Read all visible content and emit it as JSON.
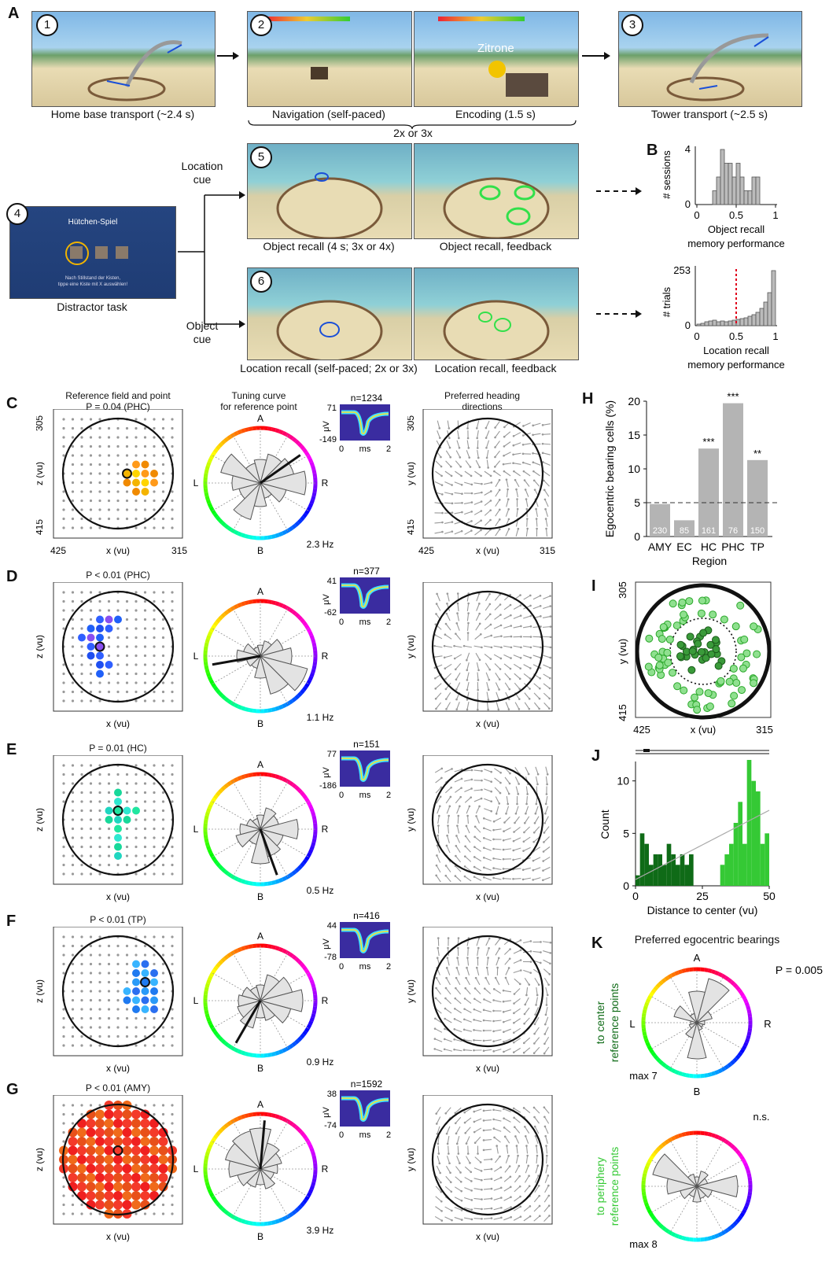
{
  "panel_letters": [
    "A",
    "B",
    "C",
    "D",
    "E",
    "F",
    "G",
    "H",
    "I",
    "J",
    "K"
  ],
  "panel_a": {
    "step_numbers": [
      "1",
      "2",
      "3",
      "4",
      "5",
      "6"
    ],
    "captions": {
      "home_base": "Home base transport (~2.4 s)",
      "navigation": "Navigation (self-paced)",
      "encoding": "Encoding (1.5 s)",
      "tower": "Tower transport (~2.5 s)",
      "repeat": "2x or 3x",
      "distractor": "Distractor task",
      "object_recall": "Object recall (4 s; 3x or 4x)",
      "object_feedback": "Object recall, feedback",
      "location_recall": "Location recall (self-paced; 2x or 3x)",
      "location_feedback": "Location recall, feedback",
      "location_cue_1": "Location",
      "location_cue_2": "cue",
      "object_cue_1": "Object",
      "object_cue_2": "cue"
    },
    "screen_text": {
      "encoding_word": "Zitrone",
      "distractor_title": "Hütchen-Spiel",
      "distractor_line1": "Nach Stillstand der Kisten,",
      "distractor_line2": "tippe eine Kiste mit X auswählen!"
    }
  },
  "panel_b": {
    "top": {
      "ylabel": "# sessions",
      "ymax": "4",
      "y0": "0",
      "xticks": [
        "0",
        "0.5",
        "1"
      ],
      "xlabel1": "Object recall",
      "xlabel2": "memory performance"
    },
    "bottom": {
      "ylabel": "# trials",
      "ymax": "253",
      "y0": "0",
      "xticks": [
        "0",
        "0.5",
        "1"
      ],
      "xlabel1": "Location recall",
      "xlabel2": "memory performance"
    }
  },
  "headers": {
    "ref_field_1": "Reference field and point",
    "ref_field_2": "P = 0.04 (PHC)",
    "tuning_1": "Tuning curve",
    "tuning_2": "for reference point",
    "heading_1": "Preferred heading",
    "heading_2": "directions"
  },
  "rows": [
    {
      "letter": "C",
      "title": "P = 0.04 (PHC)",
      "n": "n=1234",
      "vmax": "71",
      "vmin": "-149",
      "hz": "2.3 Hz"
    },
    {
      "letter": "D",
      "title": "P < 0.01 (PHC)",
      "n": "n=377",
      "vmax": "41",
      "vmin": "-62",
      "hz": "1.1 Hz"
    },
    {
      "letter": "E",
      "title": "P = 0.01 (HC)",
      "n": "n=151",
      "vmax": "77",
      "vmin": "-186",
      "hz": "0.5 Hz"
    },
    {
      "letter": "F",
      "title": "P < 0.01 (TP)",
      "n": "n=416",
      "vmax": "44",
      "vmin": "-78",
      "hz": "0.9 Hz"
    },
    {
      "letter": "G",
      "title": "P < 0.01 (AMY)",
      "n": "n=1592",
      "vmax": "38",
      "vmin": "-74",
      "hz": "3.9 Hz"
    }
  ],
  "axis_labels": {
    "x": "x (vu)",
    "z": "z (vu)",
    "y": "y (vu)",
    "x_left": "425",
    "x_right": "315",
    "z_top": "305",
    "z_bottom": "415",
    "uv": "μV",
    "ms": "ms",
    "ms0": "0",
    "ms2": "2",
    "dir_a": "A",
    "dir_b": "B",
    "dir_l": "L",
    "dir_r": "R"
  },
  "chart_data": [
    {
      "type": "bar",
      "title": "",
      "ylabel": "Egocentric bearing cells (%)",
      "xlabel": "Region",
      "categories": [
        "AMY",
        "EC",
        "HC",
        "PHC",
        "TP"
      ],
      "values": [
        4.8,
        2.4,
        13.0,
        19.7,
        11.3
      ],
      "n_labels": [
        "230",
        "85",
        "161",
        "76",
        "150"
      ],
      "significance": [
        "",
        "",
        "***",
        "***",
        "**"
      ],
      "chance_level": 5,
      "yticks": [
        "0",
        "5",
        "10",
        "15",
        "20"
      ],
      "ylim": [
        0,
        20
      ]
    },
    {
      "type": "histogram",
      "ylabel": "Count",
      "xlabel": "Distance to center (vu)",
      "xticks": [
        "0",
        "25",
        "50"
      ],
      "yticks": [
        "0",
        "5",
        "10"
      ],
      "xlim": [
        0,
        50
      ],
      "ylim": [
        0,
        12
      ]
    },
    {
      "type": "polar",
      "title": "Preferred egocentric bearings",
      "top_label": "to center",
      "top_label2": "reference points",
      "top_p": "P = 0.005",
      "top_max": "max 7",
      "bottom_label": "to periphery",
      "bottom_label2": "reference points",
      "bottom_p": "n.s.",
      "bottom_max": "max 8"
    }
  ],
  "panel_i": {
    "y_top": "305",
    "y_bottom": "415",
    "x_left": "425",
    "x_right": "315",
    "xlabel": "x (vu)",
    "ylabel": "y (vu)"
  },
  "colors": {
    "gray_bar": "#b4b4b4",
    "dark_green": "#0f6b17",
    "light_green": "#35c935",
    "red_dash": "#e0001b"
  }
}
